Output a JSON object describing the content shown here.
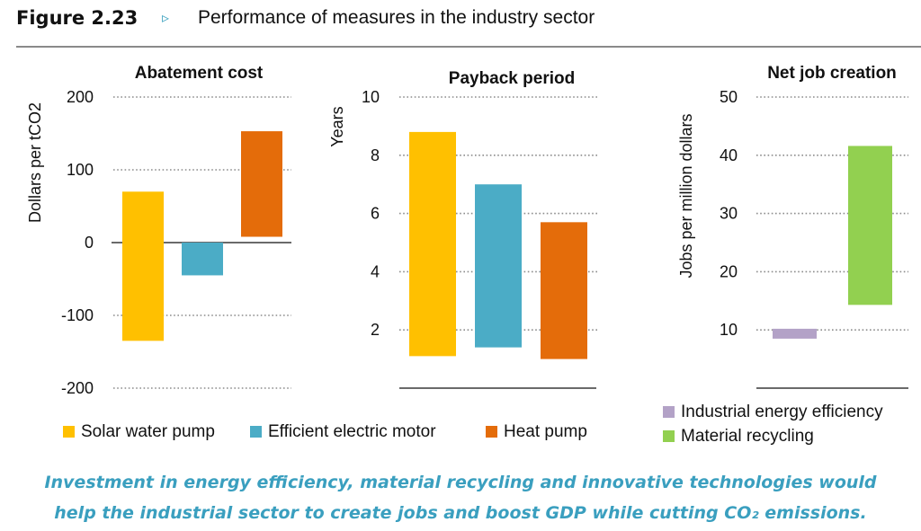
{
  "figure": {
    "number": "Figure 2.23",
    "arrow": "▹",
    "title": "Performance of measures in the industry sector"
  },
  "caption": {
    "line1": "Investment in energy efficiency, material recycling and innovative technologies would",
    "line2": "help the industrial sector to create jobs and boost GDP while cutting CO₂ emissions."
  },
  "legends": {
    "left": [
      {
        "label": "Solar water pump",
        "color": "#ffc000"
      },
      {
        "label": "Efficient electric motor",
        "color": "#4bacc6"
      },
      {
        "label": "Heat pump",
        "color": "#e46c0a"
      }
    ],
    "right": [
      {
        "label": "Industrial energy efficiency",
        "color": "#b3a2c7"
      },
      {
        "label": "Material recycling",
        "color": "#92d050"
      }
    ]
  },
  "chart_data": [
    {
      "type": "bar",
      "title": "Abatement cost",
      "ylabel": "Dollars per tCO2",
      "ylim": [
        -200,
        200
      ],
      "yticks": [
        200,
        100,
        0,
        -100,
        -200
      ],
      "grid": true,
      "zero_line": true,
      "series": [
        {
          "name": "Solar water pump",
          "color": "#ffc000",
          "low": -135,
          "high": 70
        },
        {
          "name": "Efficient electric motor",
          "color": "#4bacc6",
          "low": -45,
          "high": 0
        },
        {
          "name": "Heat pump",
          "color": "#e46c0a",
          "low": 8,
          "high": 153
        }
      ]
    },
    {
      "type": "bar",
      "title": "Payback period",
      "ylabel": "Years",
      "ylim": [
        0,
        10
      ],
      "yticks": [
        10,
        8,
        6,
        4,
        2
      ],
      "grid": true,
      "series": [
        {
          "name": "Solar water pump",
          "color": "#ffc000",
          "low": 1.1,
          "high": 8.8
        },
        {
          "name": "Efficient electric motor",
          "color": "#4bacc6",
          "low": 1.4,
          "high": 7.0
        },
        {
          "name": "Heat pump",
          "color": "#e46c0a",
          "low": 1.0,
          "high": 5.7
        }
      ]
    },
    {
      "type": "bar",
      "title": "Net job creation",
      "ylabel": "Jobs per million dollars",
      "ylim": [
        0,
        50
      ],
      "yticks": [
        50,
        40,
        30,
        20,
        10
      ],
      "grid": true,
      "series": [
        {
          "name": "Industrial energy efficiency",
          "color": "#b3a2c7",
          "low": 8.5,
          "high": 10.2
        },
        {
          "name": "Material recycling",
          "color": "#92d050",
          "low": 14.3,
          "high": 41.6
        }
      ]
    }
  ]
}
